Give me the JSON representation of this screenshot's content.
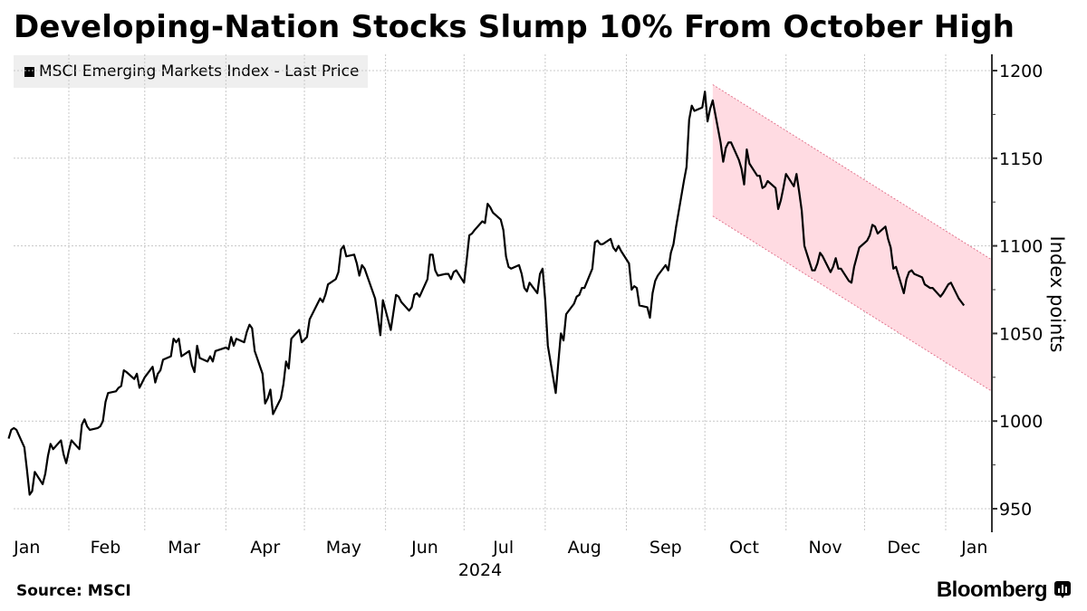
{
  "header": {
    "title": "Developing-Nation Stocks Slump 10% From October High"
  },
  "footer": {
    "source": "Source: MSCI",
    "brand": "Bloomberg",
    "brand_icon": "bloomberg-chart-icon"
  },
  "chart_data": {
    "type": "line",
    "title": "Developing-Nation Stocks Slump 10% From October High",
    "xlabel": "2024",
    "ylabel": "Index points",
    "ylim": [
      940,
      1205
    ],
    "yticks": [
      950,
      1000,
      1050,
      1100,
      1150,
      1200
    ],
    "ytick_labels": [
      "950",
      "1000",
      "1050",
      "1100",
      "1150",
      "1200"
    ],
    "y_axis_position": "right",
    "xlim": [
      "2024-01-05",
      "2025-01-19"
    ],
    "x_month_boundaries": [
      "2024-02-01",
      "2024-03-01",
      "2024-04-01",
      "2024-05-01",
      "2024-06-01",
      "2024-07-01",
      "2024-08-01",
      "2024-09-01",
      "2024-10-01",
      "2024-11-01",
      "2024-12-01",
      "2025-01-01"
    ],
    "xtick_labels": [
      {
        "label": "Jan",
        "date": "2024-01-16"
      },
      {
        "label": "Feb",
        "date": "2024-02-15"
      },
      {
        "label": "Mar",
        "date": "2024-03-16"
      },
      {
        "label": "Apr",
        "date": "2024-04-16"
      },
      {
        "label": "May",
        "date": "2024-05-16"
      },
      {
        "label": "Jun",
        "date": "2024-06-16"
      },
      {
        "label": "Jul",
        "date": "2024-07-16"
      },
      {
        "label": "Aug",
        "date": "2024-08-16"
      },
      {
        "label": "Sep",
        "date": "2024-09-16"
      },
      {
        "label": "Oct",
        "date": "2024-10-16"
      },
      {
        "label": "Nov",
        "date": "2024-11-16"
      },
      {
        "label": "Dec",
        "date": "2024-12-16"
      },
      {
        "label": "Jan",
        "date": "2025-01-12"
      }
    ],
    "grid": true,
    "legend": {
      "position": "top-left",
      "entries": [
        "MSCI Emerging Markets Index - Last Price"
      ]
    },
    "series": [
      {
        "name": "MSCI Emerging Markets Index - Last Price",
        "color": "#000000",
        "points": [
          [
            "2024-01-09",
            990
          ],
          [
            "2024-01-10",
            995
          ],
          [
            "2024-01-11",
            996
          ],
          [
            "2024-01-12",
            995
          ],
          [
            "2024-01-15",
            985
          ],
          [
            "2024-01-16",
            972
          ],
          [
            "2024-01-17",
            958
          ],
          [
            "2024-01-18",
            960
          ],
          [
            "2024-01-19",
            971
          ],
          [
            "2024-01-22",
            964
          ],
          [
            "2024-01-23",
            970
          ],
          [
            "2024-01-24",
            980
          ],
          [
            "2024-01-25",
            987
          ],
          [
            "2024-01-26",
            984
          ],
          [
            "2024-01-29",
            989
          ],
          [
            "2024-01-30",
            981
          ],
          [
            "2024-01-31",
            976
          ],
          [
            "2024-02-01",
            983
          ],
          [
            "2024-02-02",
            989
          ],
          [
            "2024-02-05",
            984
          ],
          [
            "2024-02-06",
            998
          ],
          [
            "2024-02-07",
            1001
          ],
          [
            "2024-02-08",
            997
          ],
          [
            "2024-02-09",
            995
          ],
          [
            "2024-02-12",
            996
          ],
          [
            "2024-02-13",
            997
          ],
          [
            "2024-02-14",
            1000
          ],
          [
            "2024-02-15",
            1011
          ],
          [
            "2024-02-16",
            1016
          ],
          [
            "2024-02-19",
            1017
          ],
          [
            "2024-02-20",
            1019
          ],
          [
            "2024-02-21",
            1020
          ],
          [
            "2024-02-22",
            1029
          ],
          [
            "2024-02-23",
            1028
          ],
          [
            "2024-02-26",
            1024
          ],
          [
            "2024-02-27",
            1027
          ],
          [
            "2024-02-28",
            1019
          ],
          [
            "2024-02-29",
            1022
          ],
          [
            "2024-03-01",
            1025
          ],
          [
            "2024-03-04",
            1031
          ],
          [
            "2024-03-05",
            1022
          ],
          [
            "2024-03-06",
            1027
          ],
          [
            "2024-03-07",
            1029
          ],
          [
            "2024-03-08",
            1035
          ],
          [
            "2024-03-11",
            1037
          ],
          [
            "2024-03-12",
            1047
          ],
          [
            "2024-03-13",
            1045
          ],
          [
            "2024-03-14",
            1047
          ],
          [
            "2024-03-15",
            1037
          ],
          [
            "2024-03-18",
            1040
          ],
          [
            "2024-03-19",
            1032
          ],
          [
            "2024-03-20",
            1028
          ],
          [
            "2024-03-21",
            1043
          ],
          [
            "2024-03-22",
            1036
          ],
          [
            "2024-03-25",
            1034
          ],
          [
            "2024-03-26",
            1037
          ],
          [
            "2024-03-27",
            1034
          ],
          [
            "2024-03-28",
            1040
          ],
          [
            "2024-04-01",
            1042
          ],
          [
            "2024-04-02",
            1041
          ],
          [
            "2024-04-03",
            1048
          ],
          [
            "2024-04-04",
            1043
          ],
          [
            "2024-04-05",
            1047
          ],
          [
            "2024-04-08",
            1045
          ],
          [
            "2024-04-09",
            1051
          ],
          [
            "2024-04-10",
            1055
          ],
          [
            "2024-04-11",
            1053
          ],
          [
            "2024-04-12",
            1040
          ],
          [
            "2024-04-15",
            1027
          ],
          [
            "2024-04-16",
            1010
          ],
          [
            "2024-04-17",
            1013
          ],
          [
            "2024-04-18",
            1018
          ],
          [
            "2024-04-19",
            1004
          ],
          [
            "2024-04-22",
            1013
          ],
          [
            "2024-04-23",
            1021
          ],
          [
            "2024-04-24",
            1034
          ],
          [
            "2024-04-25",
            1030
          ],
          [
            "2024-04-26",
            1047
          ],
          [
            "2024-04-29",
            1052
          ],
          [
            "2024-04-30",
            1045
          ],
          [
            "2024-05-02",
            1048
          ],
          [
            "2024-05-03",
            1058
          ],
          [
            "2024-05-06",
            1067
          ],
          [
            "2024-05-07",
            1070
          ],
          [
            "2024-05-08",
            1068
          ],
          [
            "2024-05-09",
            1072
          ],
          [
            "2024-05-10",
            1078
          ],
          [
            "2024-05-13",
            1081
          ],
          [
            "2024-05-14",
            1085
          ],
          [
            "2024-05-15",
            1098
          ],
          [
            "2024-05-16",
            1100
          ],
          [
            "2024-05-17",
            1094
          ],
          [
            "2024-05-20",
            1095
          ],
          [
            "2024-05-21",
            1090
          ],
          [
            "2024-05-22",
            1083
          ],
          [
            "2024-05-23",
            1089
          ],
          [
            "2024-05-24",
            1087
          ],
          [
            "2024-05-28",
            1070
          ],
          [
            "2024-05-29",
            1060
          ],
          [
            "2024-05-30",
            1049
          ],
          [
            "2024-05-31",
            1069
          ],
          [
            "2024-06-03",
            1052
          ],
          [
            "2024-06-04",
            1062
          ],
          [
            "2024-06-05",
            1072
          ],
          [
            "2024-06-06",
            1071
          ],
          [
            "2024-06-07",
            1068
          ],
          [
            "2024-06-10",
            1063
          ],
          [
            "2024-06-11",
            1065
          ],
          [
            "2024-06-12",
            1072
          ],
          [
            "2024-06-13",
            1073
          ],
          [
            "2024-06-14",
            1071
          ],
          [
            "2024-06-17",
            1081
          ],
          [
            "2024-06-18",
            1095
          ],
          [
            "2024-06-19",
            1095
          ],
          [
            "2024-06-20",
            1086
          ],
          [
            "2024-06-21",
            1083
          ],
          [
            "2024-06-24",
            1084
          ],
          [
            "2024-06-25",
            1084
          ],
          [
            "2024-06-26",
            1081
          ],
          [
            "2024-06-27",
            1085
          ],
          [
            "2024-06-28",
            1086
          ],
          [
            "2024-07-01",
            1079
          ],
          [
            "2024-07-02",
            1092
          ],
          [
            "2024-07-03",
            1106
          ],
          [
            "2024-07-04",
            1107
          ],
          [
            "2024-07-05",
            1109
          ],
          [
            "2024-07-08",
            1114
          ],
          [
            "2024-07-09",
            1113
          ],
          [
            "2024-07-10",
            1124
          ],
          [
            "2024-07-11",
            1122
          ],
          [
            "2024-07-12",
            1119
          ],
          [
            "2024-07-15",
            1115
          ],
          [
            "2024-07-16",
            1109
          ],
          [
            "2024-07-17",
            1094
          ],
          [
            "2024-07-18",
            1088
          ],
          [
            "2024-07-19",
            1087
          ],
          [
            "2024-07-22",
            1089
          ],
          [
            "2024-07-23",
            1084
          ],
          [
            "2024-07-24",
            1076
          ],
          [
            "2024-07-25",
            1074
          ],
          [
            "2024-07-26",
            1079
          ],
          [
            "2024-07-29",
            1073
          ],
          [
            "2024-07-30",
            1084
          ],
          [
            "2024-07-31",
            1087
          ],
          [
            "2024-08-01",
            1069
          ],
          [
            "2024-08-02",
            1043
          ],
          [
            "2024-08-05",
            1016
          ],
          [
            "2024-08-06",
            1033
          ],
          [
            "2024-08-07",
            1050
          ],
          [
            "2024-08-08",
            1046
          ],
          [
            "2024-08-09",
            1061
          ],
          [
            "2024-08-12",
            1067
          ],
          [
            "2024-08-13",
            1071
          ],
          [
            "2024-08-14",
            1072
          ],
          [
            "2024-08-15",
            1076
          ],
          [
            "2024-08-16",
            1076
          ],
          [
            "2024-08-19",
            1087
          ],
          [
            "2024-08-20",
            1102
          ],
          [
            "2024-08-21",
            1103
          ],
          [
            "2024-08-22",
            1101
          ],
          [
            "2024-08-23",
            1101
          ],
          [
            "2024-08-26",
            1104
          ],
          [
            "2024-08-27",
            1099
          ],
          [
            "2024-08-28",
            1097
          ],
          [
            "2024-08-29",
            1100
          ],
          [
            "2024-08-30",
            1097
          ],
          [
            "2024-09-02",
            1090
          ],
          [
            "2024-09-03",
            1075
          ],
          [
            "2024-09-04",
            1077
          ],
          [
            "2024-09-05",
            1076
          ],
          [
            "2024-09-06",
            1066
          ],
          [
            "2024-09-09",
            1065
          ],
          [
            "2024-09-10",
            1059
          ],
          [
            "2024-09-11",
            1073
          ],
          [
            "2024-09-12",
            1080
          ],
          [
            "2024-09-13",
            1083
          ],
          [
            "2024-09-16",
            1089
          ],
          [
            "2024-09-17",
            1086
          ],
          [
            "2024-09-18",
            1096
          ],
          [
            "2024-09-19",
            1101
          ],
          [
            "2024-09-20",
            1111
          ],
          [
            "2024-09-23",
            1137
          ],
          [
            "2024-09-24",
            1145
          ],
          [
            "2024-09-25",
            1172
          ],
          [
            "2024-09-26",
            1180
          ],
          [
            "2024-09-27",
            1177
          ],
          [
            "2024-09-30",
            1179
          ],
          [
            "2024-10-01",
            1188
          ],
          [
            "2024-10-02",
            1171
          ],
          [
            "2024-10-03",
            1178
          ],
          [
            "2024-10-04",
            1183
          ],
          [
            "2024-10-07",
            1159
          ],
          [
            "2024-10-08",
            1148
          ],
          [
            "2024-10-09",
            1156
          ],
          [
            "2024-10-10",
            1159
          ],
          [
            "2024-10-11",
            1159
          ],
          [
            "2024-10-14",
            1149
          ],
          [
            "2024-10-15",
            1144
          ],
          [
            "2024-10-16",
            1135
          ],
          [
            "2024-10-17",
            1155
          ],
          [
            "2024-10-18",
            1147
          ],
          [
            "2024-10-21",
            1140
          ],
          [
            "2024-10-22",
            1140
          ],
          [
            "2024-10-23",
            1133
          ],
          [
            "2024-10-24",
            1134
          ],
          [
            "2024-10-25",
            1137
          ],
          [
            "2024-10-28",
            1133
          ],
          [
            "2024-10-29",
            1121
          ],
          [
            "2024-10-30",
            1126
          ],
          [
            "2024-10-31",
            1133
          ],
          [
            "2024-11-01",
            1141
          ],
          [
            "2024-11-04",
            1134
          ],
          [
            "2024-11-05",
            1141
          ],
          [
            "2024-11-06",
            1131
          ],
          [
            "2024-11-07",
            1120
          ],
          [
            "2024-11-08",
            1100
          ],
          [
            "2024-11-11",
            1086
          ],
          [
            "2024-11-12",
            1086
          ],
          [
            "2024-11-13",
            1090
          ],
          [
            "2024-11-14",
            1096
          ],
          [
            "2024-11-15",
            1094
          ],
          [
            "2024-11-18",
            1085
          ],
          [
            "2024-11-19",
            1088
          ],
          [
            "2024-11-20",
            1093
          ],
          [
            "2024-11-21",
            1087
          ],
          [
            "2024-11-22",
            1087
          ],
          [
            "2024-11-25",
            1080
          ],
          [
            "2024-11-26",
            1079
          ],
          [
            "2024-11-27",
            1088
          ],
          [
            "2024-11-29",
            1099
          ],
          [
            "2024-12-02",
            1103
          ],
          [
            "2024-12-03",
            1106
          ],
          [
            "2024-12-04",
            1112
          ],
          [
            "2024-12-05",
            1111
          ],
          [
            "2024-12-06",
            1107
          ],
          [
            "2024-12-09",
            1111
          ],
          [
            "2024-12-10",
            1104
          ],
          [
            "2024-12-11",
            1099
          ],
          [
            "2024-12-12",
            1087
          ],
          [
            "2024-12-13",
            1088
          ],
          [
            "2024-12-16",
            1073
          ],
          [
            "2024-12-17",
            1081
          ],
          [
            "2024-12-18",
            1085
          ],
          [
            "2024-12-19",
            1086
          ],
          [
            "2024-12-20",
            1084
          ],
          [
            "2024-12-23",
            1082
          ],
          [
            "2024-12-24",
            1078
          ],
          [
            "2024-12-26",
            1076
          ],
          [
            "2024-12-27",
            1076
          ],
          [
            "2024-12-30",
            1071
          ],
          [
            "2024-12-31",
            1073
          ],
          [
            "2025-01-02",
            1078
          ],
          [
            "2025-01-03",
            1079
          ],
          [
            "2025-01-06",
            1070
          ],
          [
            "2025-01-07",
            1068
          ],
          [
            "2025-01-08",
            1066
          ]
        ]
      }
    ],
    "annotations": [
      {
        "type": "channel",
        "color": "#ffdbe2",
        "edge_color": "#e3768f",
        "start_date": "2024-10-04",
        "end_date": "2025-01-19",
        "upper": [
          1192,
          1092
        ],
        "lower": [
          1117,
          1017
        ]
      }
    ]
  }
}
